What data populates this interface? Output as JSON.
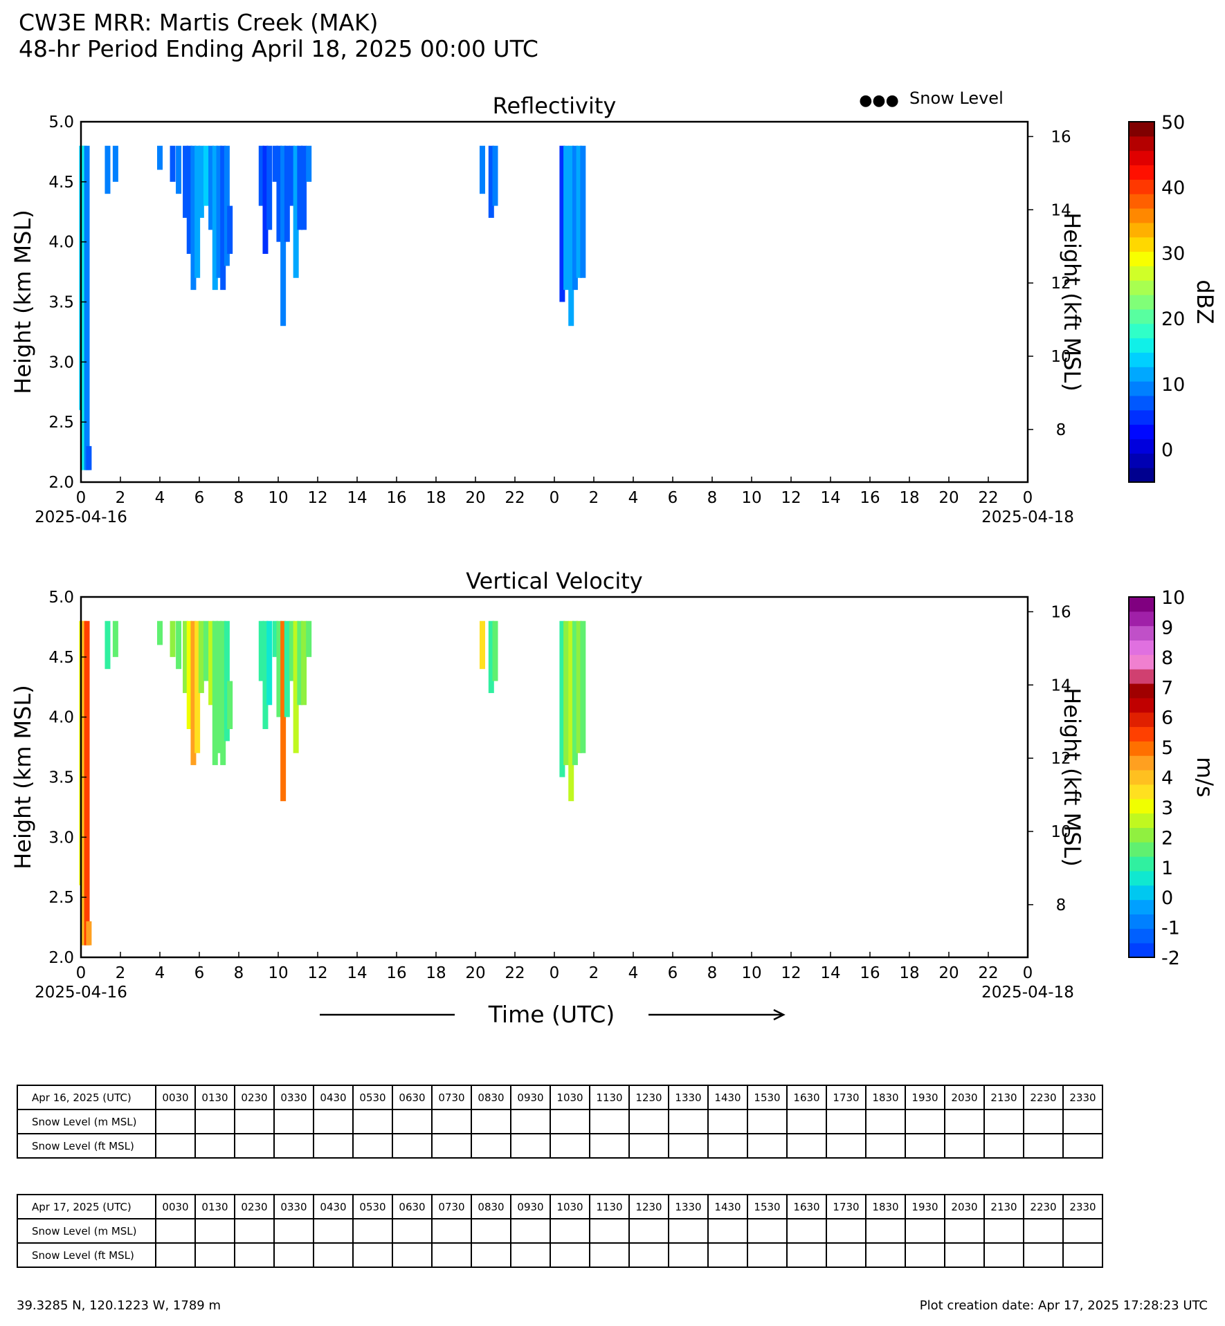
{
  "header": {
    "title": "CW3E MRR: Martis Creek (MAK)",
    "subtitle": "48-hr Period Ending April 18, 2025 00:00 UTC"
  },
  "legend": {
    "snow_level": "Snow Level",
    "marker": "●●●"
  },
  "xaxis": {
    "label": "Time (UTC)",
    "start_date": "2025-04-16",
    "end_date": "2025-04-18",
    "tick_labels": [
      "0",
      "2",
      "4",
      "6",
      "8",
      "10",
      "12",
      "14",
      "16",
      "18",
      "20",
      "22",
      "0",
      "2",
      "4",
      "6",
      "8",
      "10",
      "12",
      "14",
      "16",
      "18",
      "20",
      "22",
      "0"
    ]
  },
  "colors": {
    "dbz": [
      "#00008f",
      "#0000b3",
      "#0000dd",
      "#0008ff",
      "#0030ff",
      "#0058ff",
      "#0080ff",
      "#00a8ff",
      "#00d0ff",
      "#10f0e8",
      "#30ffc8",
      "#58ffa0",
      "#80ff78",
      "#a8ff50",
      "#d0ff28",
      "#f8ff00",
      "#ffd800",
      "#ffb000",
      "#ff8800",
      "#ff6000",
      "#ff3800",
      "#ff1000",
      "#e00000",
      "#b40000",
      "#800000"
    ],
    "vel": [
      "#0040ff",
      "#0060ff",
      "#0080ff",
      "#00a0ff",
      "#00c8f0",
      "#10e8d0",
      "#30f0a0",
      "#60f070",
      "#90f040",
      "#c0f820",
      "#f0ff00",
      "#ffe020",
      "#ffc020",
      "#ffa020",
      "#ff7000",
      "#ff4000",
      "#e02000",
      "#c00000",
      "#a00000",
      "#d04070",
      "#f080d0",
      "#e070e0",
      "#c050c8",
      "#a020a8",
      "#800080"
    ]
  },
  "chart_data": [
    {
      "type": "heatmap",
      "title": "Reflectivity",
      "xlabel": "",
      "ylabel": "Height (km MSL)",
      "ylabel_right": "Height (kft MSL)",
      "xlim": [
        0,
        48
      ],
      "ylim": [
        2.0,
        5.0
      ],
      "yticks": [
        "2.0",
        "2.5",
        "3.0",
        "3.5",
        "4.0",
        "4.5",
        "5.0"
      ],
      "yticks_right": [
        "8",
        "10",
        "12",
        "14",
        "16"
      ],
      "colorbar": {
        "label": "dBZ",
        "min": -5,
        "max": 50,
        "ticks": [
          "0",
          "10",
          "20",
          "30",
          "40",
          "50"
        ]
      },
      "columns": [
        {
          "t": 0.05,
          "bottom": 2.6,
          "top": 4.8,
          "value": 14
        },
        {
          "t": 0.15,
          "bottom": 2.1,
          "top": 4.8,
          "value": 16
        },
        {
          "t": 0.3,
          "bottom": 2.1,
          "top": 4.8,
          "value": 9
        },
        {
          "t": 0.4,
          "bottom": 2.1,
          "top": 2.3,
          "value": 6
        },
        {
          "t": 1.35,
          "bottom": 4.4,
          "top": 4.8,
          "value": 9
        },
        {
          "t": 1.75,
          "bottom": 4.5,
          "top": 4.8,
          "value": 10
        },
        {
          "t": 4.0,
          "bottom": 4.6,
          "top": 4.8,
          "value": 9
        },
        {
          "t": 4.65,
          "bottom": 4.5,
          "top": 4.8,
          "value": 8
        },
        {
          "t": 4.95,
          "bottom": 4.4,
          "top": 4.8,
          "value": 10
        },
        {
          "t": 5.3,
          "bottom": 4.2,
          "top": 4.8,
          "value": 8
        },
        {
          "t": 5.5,
          "bottom": 3.9,
          "top": 4.8,
          "value": 6
        },
        {
          "t": 5.7,
          "bottom": 3.6,
          "top": 4.8,
          "value": 9
        },
        {
          "t": 5.9,
          "bottom": 3.7,
          "top": 4.8,
          "value": 11
        },
        {
          "t": 6.1,
          "bottom": 4.2,
          "top": 4.8,
          "value": 12
        },
        {
          "t": 6.35,
          "bottom": 4.3,
          "top": 4.8,
          "value": 13
        },
        {
          "t": 6.6,
          "bottom": 4.1,
          "top": 4.8,
          "value": 9
        },
        {
          "t": 6.8,
          "bottom": 3.6,
          "top": 4.8,
          "value": 12
        },
        {
          "t": 7.0,
          "bottom": 3.7,
          "top": 4.8,
          "value": 10
        },
        {
          "t": 7.2,
          "bottom": 3.6,
          "top": 4.8,
          "value": 8
        },
        {
          "t": 7.4,
          "bottom": 3.8,
          "top": 4.8,
          "value": 9
        },
        {
          "t": 7.55,
          "bottom": 3.9,
          "top": 4.3,
          "value": 7
        },
        {
          "t": 9.15,
          "bottom": 4.3,
          "top": 4.8,
          "value": 6
        },
        {
          "t": 9.35,
          "bottom": 3.9,
          "top": 4.8,
          "value": 5
        },
        {
          "t": 9.55,
          "bottom": 4.1,
          "top": 4.8,
          "value": 7
        },
        {
          "t": 9.85,
          "bottom": 4.5,
          "top": 4.8,
          "value": 8
        },
        {
          "t": 10.05,
          "bottom": 4.0,
          "top": 4.8,
          "value": 6
        },
        {
          "t": 10.25,
          "bottom": 3.3,
          "top": 4.8,
          "value": 9
        },
        {
          "t": 10.45,
          "bottom": 4.0,
          "top": 4.8,
          "value": 7
        },
        {
          "t": 10.7,
          "bottom": 4.3,
          "top": 4.8,
          "value": 8
        },
        {
          "t": 10.9,
          "bottom": 3.7,
          "top": 4.8,
          "value": 12
        },
        {
          "t": 11.1,
          "bottom": 4.1,
          "top": 4.8,
          "value": 6
        },
        {
          "t": 11.3,
          "bottom": 4.1,
          "top": 4.8,
          "value": 8
        },
        {
          "t": 11.55,
          "bottom": 4.5,
          "top": 4.8,
          "value": 9
        },
        {
          "t": 20.35,
          "bottom": 4.4,
          "top": 4.8,
          "value": 9
        },
        {
          "t": 20.8,
          "bottom": 4.2,
          "top": 4.8,
          "value": 8
        },
        {
          "t": 21.0,
          "bottom": 4.3,
          "top": 4.8,
          "value": 9
        },
        {
          "t": 24.4,
          "bottom": 3.5,
          "top": 4.8,
          "value": 5
        },
        {
          "t": 24.6,
          "bottom": 3.6,
          "top": 4.8,
          "value": 12
        },
        {
          "t": 24.85,
          "bottom": 3.3,
          "top": 4.8,
          "value": 11
        },
        {
          "t": 25.05,
          "bottom": 3.6,
          "top": 4.8,
          "value": 10
        },
        {
          "t": 25.25,
          "bottom": 3.7,
          "top": 4.8,
          "value": 12
        },
        {
          "t": 25.45,
          "bottom": 3.7,
          "top": 4.8,
          "value": 9
        }
      ]
    },
    {
      "type": "heatmap",
      "title": "Vertical Velocity",
      "xlabel": "Time (UTC)",
      "ylabel": "Height (km MSL)",
      "ylabel_right": "Height (kft MSL)",
      "xlim": [
        0,
        48
      ],
      "ylim": [
        2.0,
        5.0
      ],
      "yticks": [
        "2.0",
        "2.5",
        "3.0",
        "3.5",
        "4.0",
        "4.5",
        "5.0"
      ],
      "yticks_right": [
        "8",
        "10",
        "12",
        "14",
        "16"
      ],
      "colorbar": {
        "label": "m/s",
        "min": -2,
        "max": 10,
        "ticks": [
          "-2",
          "-1",
          "0",
          "1",
          "2",
          "3",
          "4",
          "5",
          "6",
          "7",
          "8",
          "9",
          "10"
        ]
      },
      "columns": [
        {
          "t": 0.05,
          "bottom": 2.6,
          "top": 4.8,
          "value": 3.2
        },
        {
          "t": 0.15,
          "bottom": 2.1,
          "top": 4.8,
          "value": 4.2
        },
        {
          "t": 0.3,
          "bottom": 2.1,
          "top": 4.8,
          "value": 5.2
        },
        {
          "t": 0.4,
          "bottom": 2.1,
          "top": 2.3,
          "value": 4.3
        },
        {
          "t": 1.35,
          "bottom": 4.4,
          "top": 4.8,
          "value": 1.2
        },
        {
          "t": 1.75,
          "bottom": 4.5,
          "top": 4.8,
          "value": 1.4
        },
        {
          "t": 4.0,
          "bottom": 4.6,
          "top": 4.8,
          "value": 1.6
        },
        {
          "t": 4.65,
          "bottom": 4.5,
          "top": 4.8,
          "value": 2.0
        },
        {
          "t": 4.95,
          "bottom": 4.4,
          "top": 4.8,
          "value": 1.5
        },
        {
          "t": 5.3,
          "bottom": 4.2,
          "top": 4.8,
          "value": 2.2
        },
        {
          "t": 5.5,
          "bottom": 3.9,
          "top": 4.8,
          "value": 2.8
        },
        {
          "t": 5.7,
          "bottom": 3.6,
          "top": 4.8,
          "value": 4.5
        },
        {
          "t": 5.9,
          "bottom": 3.7,
          "top": 4.8,
          "value": 3.5
        },
        {
          "t": 6.1,
          "bottom": 4.2,
          "top": 4.8,
          "value": 2.0
        },
        {
          "t": 6.35,
          "bottom": 4.3,
          "top": 4.8,
          "value": 1.8
        },
        {
          "t": 6.6,
          "bottom": 4.1,
          "top": 4.8,
          "value": 2.5
        },
        {
          "t": 6.8,
          "bottom": 3.6,
          "top": 4.8,
          "value": 1.8
        },
        {
          "t": 7.0,
          "bottom": 3.7,
          "top": 4.8,
          "value": 1.4
        },
        {
          "t": 7.2,
          "bottom": 3.6,
          "top": 4.8,
          "value": 1.6
        },
        {
          "t": 7.4,
          "bottom": 3.8,
          "top": 4.8,
          "value": 1.2
        },
        {
          "t": 7.55,
          "bottom": 3.9,
          "top": 4.3,
          "value": 1.5
        },
        {
          "t": 9.15,
          "bottom": 4.3,
          "top": 4.8,
          "value": 1.2
        },
        {
          "t": 9.35,
          "bottom": 3.9,
          "top": 4.8,
          "value": 1.0
        },
        {
          "t": 9.55,
          "bottom": 4.1,
          "top": 4.8,
          "value": 0.8
        },
        {
          "t": 9.85,
          "bottom": 4.5,
          "top": 4.8,
          "value": 1.2
        },
        {
          "t": 10.05,
          "bottom": 4.0,
          "top": 4.8,
          "value": 1.4
        },
        {
          "t": 10.25,
          "bottom": 3.3,
          "top": 4.8,
          "value": 5.0
        },
        {
          "t": 10.45,
          "bottom": 4.0,
          "top": 4.8,
          "value": 1.3
        },
        {
          "t": 10.7,
          "bottom": 4.3,
          "top": 4.8,
          "value": 1.8
        },
        {
          "t": 10.9,
          "bottom": 3.7,
          "top": 4.8,
          "value": 2.6
        },
        {
          "t": 11.1,
          "bottom": 4.1,
          "top": 4.8,
          "value": 1.5
        },
        {
          "t": 11.3,
          "bottom": 4.1,
          "top": 4.8,
          "value": 2.3
        },
        {
          "t": 11.55,
          "bottom": 4.5,
          "top": 4.8,
          "value": 1.5
        },
        {
          "t": 20.35,
          "bottom": 4.4,
          "top": 4.8,
          "value": 3.5
        },
        {
          "t": 20.8,
          "bottom": 4.2,
          "top": 4.8,
          "value": 1.2
        },
        {
          "t": 21.0,
          "bottom": 4.3,
          "top": 4.8,
          "value": 1.5
        },
        {
          "t": 24.4,
          "bottom": 3.5,
          "top": 4.8,
          "value": 1.2
        },
        {
          "t": 24.6,
          "bottom": 3.6,
          "top": 4.8,
          "value": 2.0
        },
        {
          "t": 24.85,
          "bottom": 3.3,
          "top": 4.8,
          "value": 2.5
        },
        {
          "t": 25.05,
          "bottom": 3.6,
          "top": 4.8,
          "value": 1.8
        },
        {
          "t": 25.25,
          "bottom": 3.7,
          "top": 4.8,
          "value": 2.2
        },
        {
          "t": 25.45,
          "bottom": 3.7,
          "top": 4.8,
          "value": 1.6
        }
      ]
    }
  ],
  "tables": {
    "row_labels": [
      "Snow Level (m MSL)",
      "Snow Level (ft MSL)"
    ],
    "times": [
      "0030",
      "0130",
      "0230",
      "0330",
      "0430",
      "0530",
      "0630",
      "0730",
      "0830",
      "0930",
      "1030",
      "1130",
      "1230",
      "1330",
      "1430",
      "1530",
      "1630",
      "1730",
      "1830",
      "1930",
      "2030",
      "2130",
      "2230",
      "2330"
    ],
    "day1_header": "Apr 16, 2025 (UTC)",
    "day2_header": "Apr 17, 2025 (UTC)"
  },
  "footer": {
    "location": "39.3285 N, 120.1223 W, 1789 m",
    "creation": "Plot creation date: Apr 17, 2025 17:28:23 UTC"
  }
}
